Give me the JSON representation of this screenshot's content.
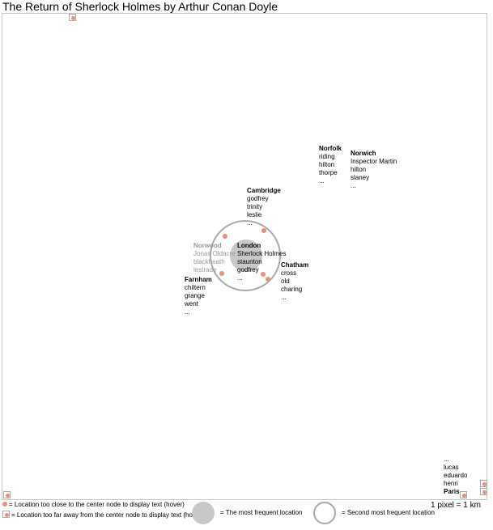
{
  "title": "The Return of Sherlock Holmes by Arthur Conan Doyle",
  "nodes": {
    "london": {
      "name": "London",
      "lines": [
        "Sherlock Holmes",
        "staunton",
        "godfrey",
        "..."
      ]
    },
    "norwood": {
      "name": "Norwood",
      "lines": [
        "Jonas Oldacre",
        "blackheath",
        "lestrade"
      ]
    },
    "farnham": {
      "name": "Farnham",
      "lines": [
        "chiltern",
        "grange",
        "went",
        "..."
      ]
    },
    "cambridge": {
      "name": "Cambridge",
      "lines": [
        "godfrey",
        "trinity",
        "leslie",
        "..."
      ]
    },
    "chatham": {
      "name": "Chatham",
      "lines": [
        "cross",
        "old",
        "charing",
        "..."
      ]
    },
    "norfolk": {
      "name": "Norfolk",
      "lines": [
        "riding",
        "hilton",
        "thorpe",
        "..."
      ]
    },
    "norwich": {
      "name": "Norwich",
      "lines": [
        "Inspector Martin",
        "hilton",
        "slaney",
        "..."
      ]
    },
    "paris": {
      "name": "Paris",
      "lines": [
        "...",
        "lucas",
        "eduardo",
        "henri"
      ]
    }
  },
  "legend": {
    "too_close": "= Location too close to the center node to display text (hover)",
    "too_far": "= Location too far away from the center node to display text (hover)",
    "most_frequent": "= The most frequent location",
    "second_frequent": "= Second most frequent location"
  },
  "scale": "1 pixel = 1 km"
}
